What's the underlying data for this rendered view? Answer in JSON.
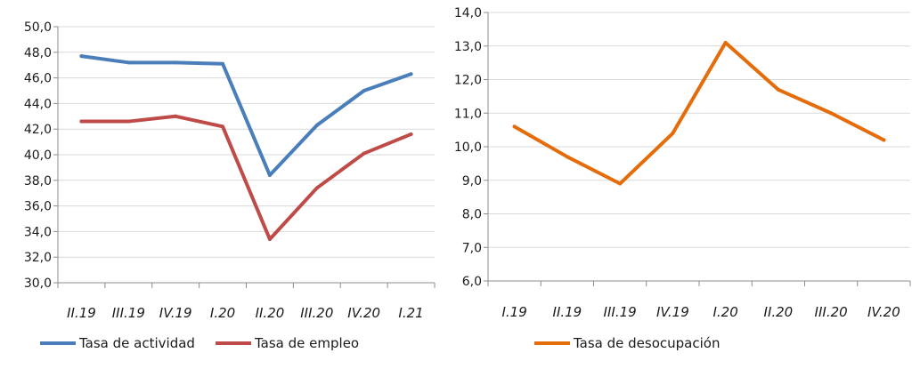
{
  "chart_data": [
    {
      "type": "line",
      "title": "",
      "xlabel": "",
      "ylabel": "",
      "categories": [
        "II.19",
        "III.19",
        "IV.19",
        "I.20",
        "II.20",
        "III.20",
        "IV.20",
        "I.21"
      ],
      "ylim": [
        30.0,
        50.0
      ],
      "ytick_step": 2,
      "yticks": [
        "30,0",
        "32,0",
        "34,0",
        "36,0",
        "38,0",
        "40,0",
        "42,0",
        "44,0",
        "46,0",
        "48,0",
        "50,0"
      ],
      "grid": true,
      "legend_position": "bottom",
      "series": [
        {
          "name": "Tasa de actividad",
          "color": "#4a7ebb",
          "values": [
            47.7,
            47.2,
            47.2,
            47.1,
            38.4,
            42.3,
            45.0,
            46.3
          ]
        },
        {
          "name": "Tasa de empleo",
          "color": "#be4b48",
          "values": [
            42.6,
            42.6,
            43.0,
            42.2,
            33.4,
            37.4,
            40.1,
            41.6
          ]
        }
      ]
    },
    {
      "type": "line",
      "title": "",
      "xlabel": "",
      "ylabel": "",
      "categories": [
        "I.19",
        "II.19",
        "III.19",
        "IV.19",
        "I.20",
        "II.20",
        "III.20",
        "IV.20"
      ],
      "ylim": [
        6.0,
        14.0
      ],
      "ytick_step": 1,
      "yticks": [
        "6,0",
        "7,0",
        "8,0",
        "9,0",
        "10,0",
        "11,0",
        "12,0",
        "13,0",
        "14,0"
      ],
      "grid": true,
      "legend_position": "bottom",
      "series": [
        {
          "name": "Tasa de desocupación",
          "color": "#e46c0a",
          "values": [
            10.6,
            9.7,
            8.9,
            10.4,
            13.1,
            11.7,
            11.0,
            10.2
          ]
        }
      ]
    }
  ]
}
